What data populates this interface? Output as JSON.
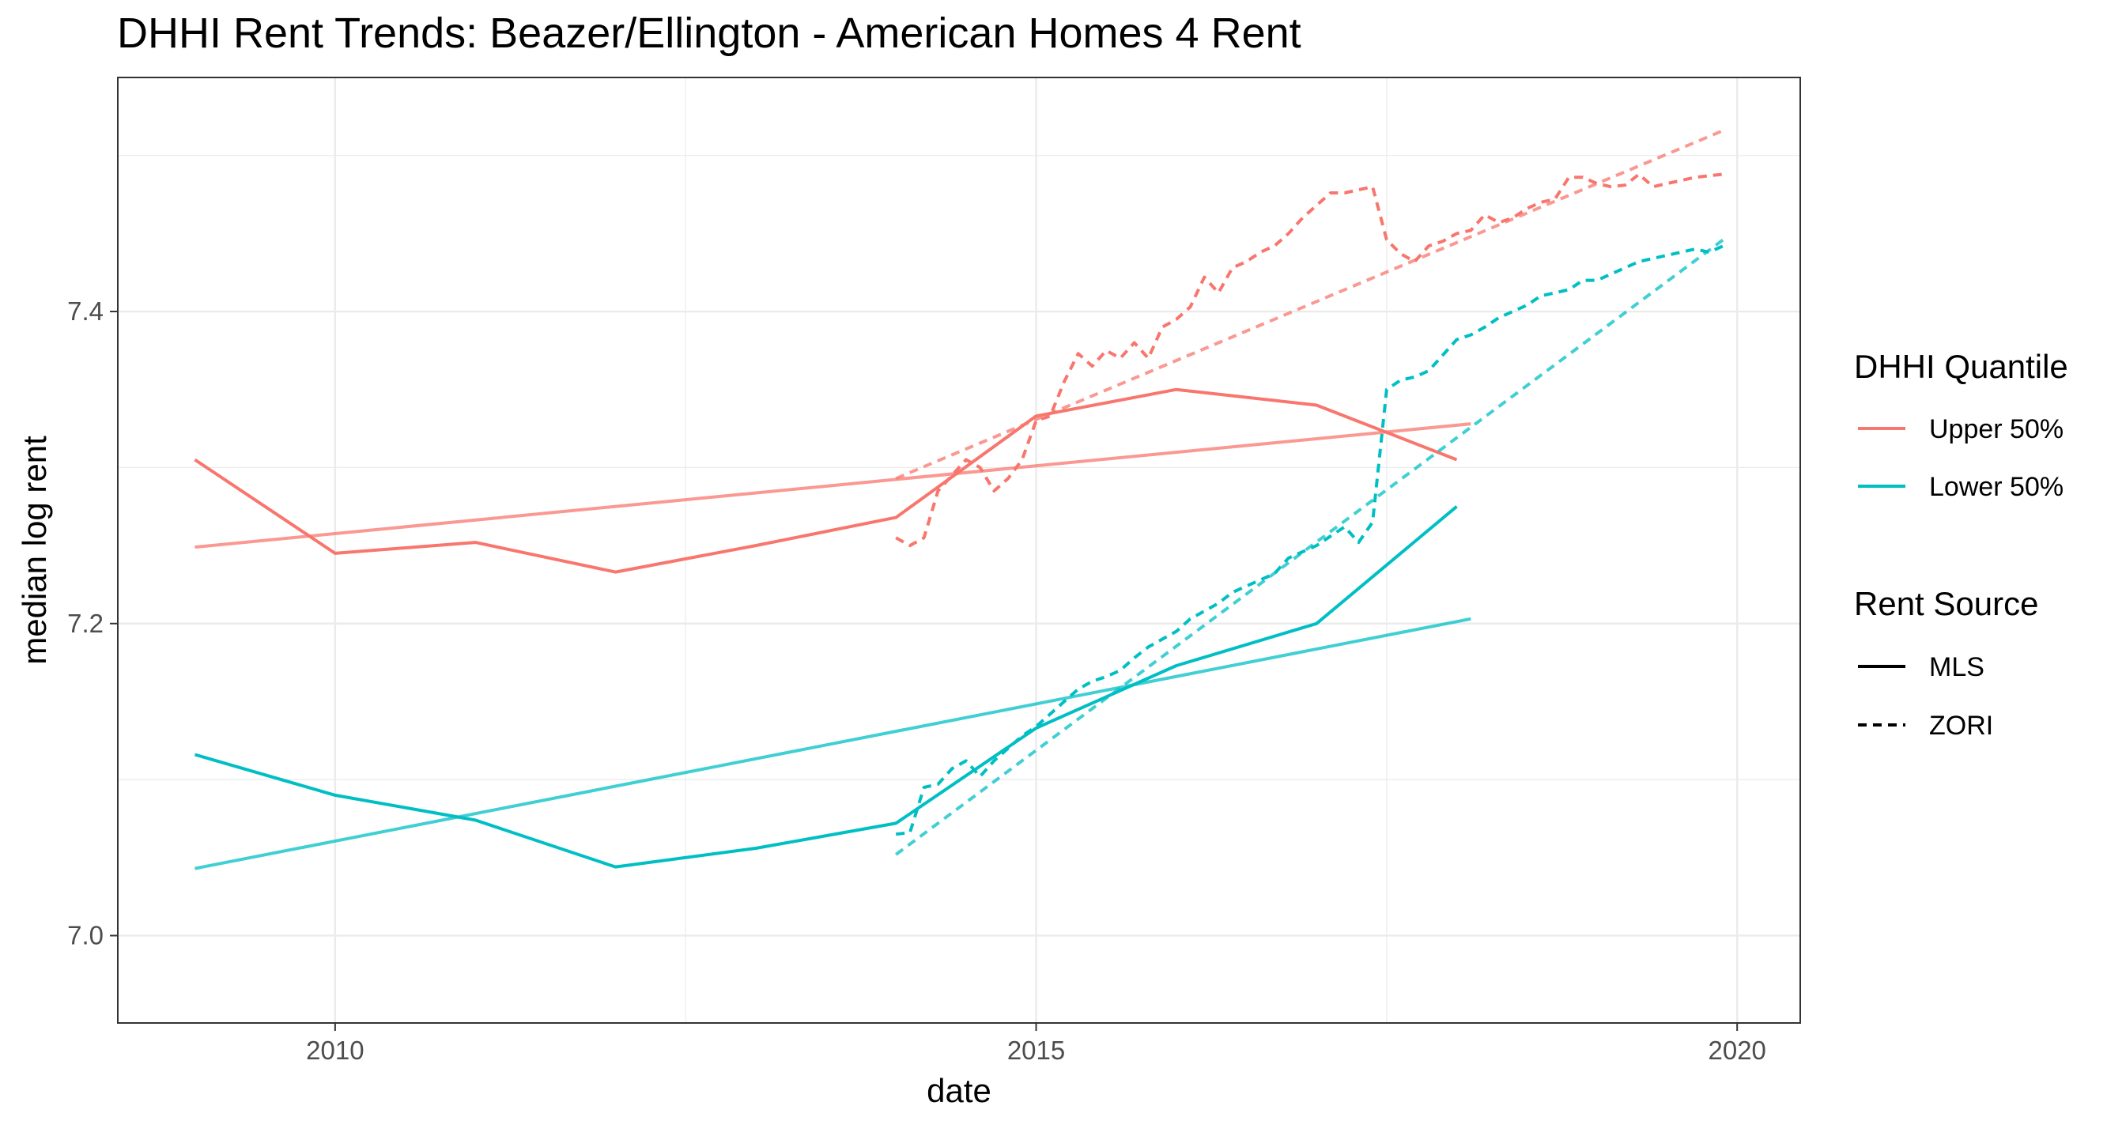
{
  "chart_data": {
    "type": "line",
    "title": "DHHI Rent Trends: Beazer/Ellington - American Homes 4 Rent",
    "xlabel": "date",
    "ylabel": "median log rent",
    "xlim": [
      2008.45,
      2020.45
    ],
    "ylim": [
      6.944,
      7.55
    ],
    "x_ticks": [
      2010,
      2015,
      2020
    ],
    "x_tick_labels": [
      "2010",
      "2015",
      "2020"
    ],
    "y_ticks": [
      7.0,
      7.2,
      7.4
    ],
    "y_tick_labels": [
      "7.0",
      "7.2",
      "7.4"
    ],
    "grid": true,
    "legend_position": "right",
    "legend": {
      "color_title": "DHHI Quantile",
      "color_entries": [
        {
          "label": "Upper 50%",
          "color": "#F8766D"
        },
        {
          "label": "Lower 50%",
          "color": "#00BFC4"
        }
      ],
      "linetype_title": "Rent Source",
      "linetype_entries": [
        {
          "label": "MLS",
          "dash": "solid"
        },
        {
          "label": "ZORI",
          "dash": "dashed"
        }
      ]
    },
    "series": [
      {
        "quantile": "Upper 50%",
        "source": "MLS",
        "color": "#F8766D",
        "dash": "solid",
        "kind": "observed",
        "x": [
          2009,
          2010,
          2011,
          2012,
          2013,
          2014,
          2015,
          2016,
          2017,
          2018
        ],
        "y": [
          7.305,
          7.245,
          7.252,
          7.233,
          7.25,
          7.268,
          7.333,
          7.35,
          7.34,
          7.305
        ]
      },
      {
        "quantile": "Lower 50%",
        "source": "MLS",
        "color": "#00BFC4",
        "dash": "solid",
        "kind": "observed",
        "x": [
          2009,
          2010,
          2011,
          2012,
          2013,
          2014,
          2015,
          2016,
          2017,
          2018
        ],
        "y": [
          7.116,
          7.09,
          7.074,
          7.044,
          7.056,
          7.072,
          7.133,
          7.173,
          7.2,
          7.275
        ]
      },
      {
        "quantile": "Upper 50%",
        "source": "ZORI",
        "color": "#F8766D",
        "dash": "dashed",
        "kind": "observed",
        "x": [
          2014.0,
          2014.1,
          2014.2,
          2014.3,
          2014.4,
          2014.5,
          2014.6,
          2014.7,
          2014.8,
          2014.9,
          2015.0,
          2015.1,
          2015.2,
          2015.3,
          2015.4,
          2015.5,
          2015.6,
          2015.7,
          2015.8,
          2015.9,
          2016.0,
          2016.1,
          2016.2,
          2016.3,
          2016.4,
          2016.5,
          2016.6,
          2016.7,
          2016.8,
          2016.9,
          2017.0,
          2017.1,
          2017.2,
          2017.3,
          2017.4,
          2017.5,
          2017.6,
          2017.7,
          2017.8,
          2017.9,
          2018.0,
          2018.1,
          2018.2,
          2018.3,
          2018.4,
          2018.5,
          2018.6,
          2018.7,
          2018.8,
          2018.9,
          2019.0,
          2019.1,
          2019.2,
          2019.3,
          2019.4,
          2019.5,
          2019.6,
          2019.7,
          2019.8,
          2019.9
        ],
        "y": [
          7.255,
          7.25,
          7.255,
          7.285,
          7.295,
          7.305,
          7.3,
          7.285,
          7.293,
          7.305,
          7.33,
          7.333,
          7.355,
          7.373,
          7.365,
          7.375,
          7.37,
          7.38,
          7.37,
          7.39,
          7.395,
          7.403,
          7.422,
          7.412,
          7.428,
          7.432,
          7.438,
          7.442,
          7.45,
          7.46,
          7.468,
          7.476,
          7.476,
          7.478,
          7.48,
          7.446,
          7.437,
          7.432,
          7.442,
          7.445,
          7.45,
          7.452,
          7.462,
          7.457,
          7.46,
          7.466,
          7.47,
          7.472,
          7.486,
          7.486,
          7.482,
          7.48,
          7.481,
          7.488,
          7.48,
          7.482,
          7.484,
          7.486,
          7.487,
          7.488
        ]
      },
      {
        "quantile": "Lower 50%",
        "source": "ZORI",
        "color": "#00BFC4",
        "dash": "dashed",
        "kind": "observed",
        "x": [
          2014.0,
          2014.1,
          2014.2,
          2014.3,
          2014.4,
          2014.5,
          2014.6,
          2014.7,
          2014.8,
          2014.9,
          2015.0,
          2015.1,
          2015.2,
          2015.3,
          2015.4,
          2015.5,
          2015.6,
          2015.7,
          2015.8,
          2015.9,
          2016.0,
          2016.1,
          2016.2,
          2016.3,
          2016.4,
          2016.5,
          2016.6,
          2016.7,
          2016.8,
          2016.9,
          2017.0,
          2017.1,
          2017.2,
          2017.3,
          2017.4,
          2017.5,
          2017.6,
          2017.7,
          2017.8,
          2017.9,
          2018.0,
          2018.1,
          2018.2,
          2018.3,
          2018.4,
          2018.5,
          2018.6,
          2018.7,
          2018.8,
          2018.9,
          2019.0,
          2019.1,
          2019.2,
          2019.3,
          2019.4,
          2019.5,
          2019.6,
          2019.7,
          2019.8,
          2019.9
        ],
        "y": [
          7.065,
          7.066,
          7.095,
          7.097,
          7.107,
          7.112,
          7.102,
          7.112,
          7.12,
          7.128,
          7.134,
          7.142,
          7.15,
          7.158,
          7.163,
          7.166,
          7.17,
          7.178,
          7.185,
          7.19,
          7.195,
          7.203,
          7.208,
          7.213,
          7.22,
          7.224,
          7.228,
          7.232,
          7.242,
          7.246,
          7.25,
          7.256,
          7.262,
          7.252,
          7.265,
          7.35,
          7.356,
          7.358,
          7.362,
          7.372,
          7.382,
          7.385,
          7.39,
          7.396,
          7.4,
          7.404,
          7.41,
          7.412,
          7.414,
          7.42,
          7.42,
          7.424,
          7.428,
          7.432,
          7.434,
          7.436,
          7.438,
          7.44,
          7.438,
          7.442
        ]
      },
      {
        "quantile": "Upper 50%",
        "source": "MLS",
        "color": "#F8766D",
        "dash": "solid",
        "kind": "trend",
        "x": [
          2009,
          2018.1
        ],
        "y": [
          7.249,
          7.328
        ]
      },
      {
        "quantile": "Lower 50%",
        "source": "MLS",
        "color": "#00BFC4",
        "dash": "solid",
        "kind": "trend",
        "x": [
          2009,
          2018.1
        ],
        "y": [
          7.043,
          7.203
        ]
      },
      {
        "quantile": "Upper 50%",
        "source": "ZORI",
        "color": "#F8766D",
        "dash": "dashed",
        "kind": "trend",
        "x": [
          2014,
          2019.9
        ],
        "y": [
          7.293,
          7.516
        ]
      },
      {
        "quantile": "Lower 50%",
        "source": "ZORI",
        "color": "#00BFC4",
        "dash": "dashed",
        "kind": "trend",
        "x": [
          2014,
          2019.9
        ],
        "y": [
          7.052,
          7.446
        ]
      }
    ]
  }
}
